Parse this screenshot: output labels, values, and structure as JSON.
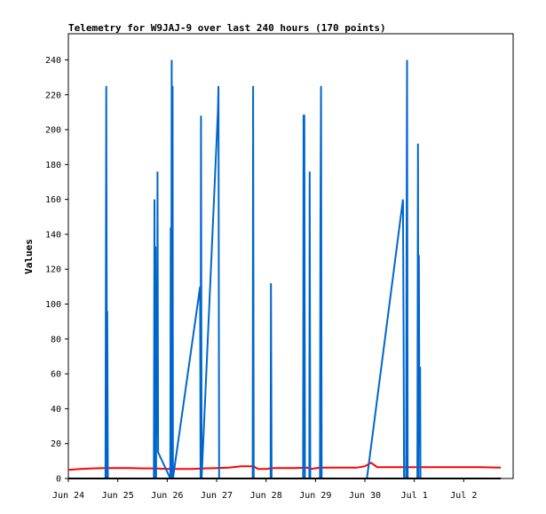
{
  "chart_data": {
    "type": "line",
    "title": "Telemetry for W9JAJ-9 over last 240 hours (170 points)",
    "ylabel": "Values",
    "xlabel": "",
    "x_unit": "hours since Jun 24 00:00",
    "xlim": [
      0,
      216
    ],
    "ylim": [
      0,
      255
    ],
    "grid": false,
    "legend": "none",
    "x_ticks": [
      {
        "label": "Jun 24",
        "value": 0
      },
      {
        "label": "Jun 25",
        "value": 24
      },
      {
        "label": "Jun 26",
        "value": 48
      },
      {
        "label": "Jun 27",
        "value": 72
      },
      {
        "label": "Jun 28",
        "value": 96
      },
      {
        "label": "Jun 29",
        "value": 120
      },
      {
        "label": "Jun 30",
        "value": 144
      },
      {
        "label": "Jul 1",
        "value": 168
      },
      {
        "label": "Jul 2",
        "value": 192
      }
    ],
    "y_ticks": [
      {
        "label": "0",
        "value": 0
      },
      {
        "label": "20",
        "value": 20
      },
      {
        "label": "40",
        "value": 40
      },
      {
        "label": "60",
        "value": 60
      },
      {
        "label": "80",
        "value": 80
      },
      {
        "label": "100",
        "value": 100
      },
      {
        "label": "120",
        "value": 120
      },
      {
        "label": "140",
        "value": 140
      },
      {
        "label": "160",
        "value": 160
      },
      {
        "label": "180",
        "value": 180
      },
      {
        "label": "200",
        "value": 200
      },
      {
        "label": "220",
        "value": 220
      },
      {
        "label": "240",
        "value": 240
      }
    ],
    "series": [
      {
        "color": "#ff0000",
        "width": 2,
        "points": [
          [
            0,
            5
          ],
          [
            6,
            5.5
          ],
          [
            12,
            5.8
          ],
          [
            18,
            6
          ],
          [
            24,
            6
          ],
          [
            30,
            6
          ],
          [
            36,
            5.8
          ],
          [
            42,
            5.8
          ],
          [
            48,
            5.5
          ],
          [
            54,
            5.5
          ],
          [
            60,
            5.5
          ],
          [
            66,
            5.8
          ],
          [
            72,
            6
          ],
          [
            78,
            6.2
          ],
          [
            84,
            7
          ],
          [
            90,
            7
          ],
          [
            92,
            5.5
          ],
          [
            96,
            5.5
          ],
          [
            100,
            6
          ],
          [
            110,
            6
          ],
          [
            116,
            6.2
          ],
          [
            118,
            5.5
          ],
          [
            122,
            6.2
          ],
          [
            130,
            6.2
          ],
          [
            140,
            6.2
          ],
          [
            144,
            7
          ],
          [
            147,
            9
          ],
          [
            150,
            6.5
          ],
          [
            160,
            6.5
          ],
          [
            170,
            6.5
          ],
          [
            180,
            6.5
          ],
          [
            190,
            6.5
          ],
          [
            200,
            6.5
          ],
          [
            210,
            6.2
          ]
        ]
      },
      {
        "color": "#0066cc",
        "width": 2,
        "points": [
          [
            18,
            0
          ],
          [
            18.4,
            225
          ],
          [
            18.8,
            0
          ],
          [
            18.9,
            96
          ],
          [
            19.2,
            0
          ],
          [
            41.5,
            0
          ],
          [
            41.8,
            160
          ],
          [
            42.1,
            0
          ],
          [
            42.3,
            133
          ],
          [
            42.6,
            0
          ],
          [
            42.8,
            80
          ],
          [
            43.1,
            26
          ],
          [
            43.3,
            176
          ],
          [
            43.6,
            15
          ],
          [
            49.5,
            0
          ],
          [
            49.7,
            144
          ],
          [
            49.9,
            0
          ],
          [
            50.2,
            240
          ],
          [
            50.4,
            0
          ],
          [
            50.6,
            225
          ],
          [
            50.8,
            0
          ],
          [
            64,
            110
          ],
          [
            64.2,
            0
          ],
          [
            64.4,
            208
          ],
          [
            64.7,
            0
          ],
          [
            72.6,
            210
          ],
          [
            72.9,
            225
          ],
          [
            73.2,
            0
          ],
          [
            89.5,
            0
          ],
          [
            89.7,
            225
          ],
          [
            90,
            0
          ],
          [
            98.2,
            0
          ],
          [
            98.4,
            112
          ],
          [
            98.7,
            0
          ],
          [
            114,
            0
          ],
          [
            114.2,
            208
          ],
          [
            114.6,
            208
          ],
          [
            114.9,
            0
          ],
          [
            117,
            0
          ],
          [
            117.2,
            176
          ],
          [
            117.5,
            0
          ],
          [
            122.2,
            0
          ],
          [
            122.4,
            144
          ],
          [
            122.7,
            225
          ],
          [
            123,
            0
          ],
          [
            145,
            0
          ],
          [
            162.5,
            160
          ],
          [
            162.8,
            80
          ],
          [
            163,
            0
          ],
          [
            164,
            0
          ],
          [
            164.2,
            120
          ],
          [
            164.5,
            240
          ],
          [
            164.8,
            0
          ],
          [
            169.5,
            0
          ],
          [
            169.8,
            192
          ],
          [
            170,
            0
          ],
          [
            170.2,
            128
          ],
          [
            170.5,
            18
          ],
          [
            170.8,
            64
          ],
          [
            171,
            0
          ]
        ]
      },
      {
        "color": "#000000",
        "width": 2,
        "points": [
          [
            0,
            0
          ],
          [
            210,
            0
          ]
        ]
      }
    ]
  }
}
